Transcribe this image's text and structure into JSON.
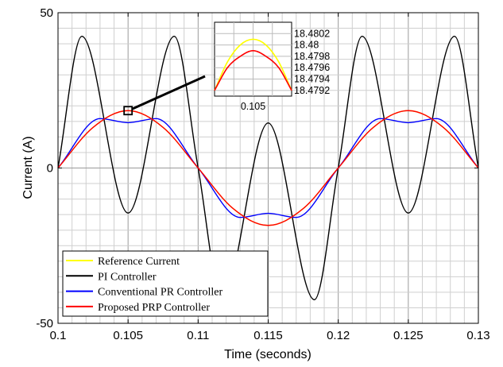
{
  "chart_data": {
    "type": "line",
    "xlabel": "Time (seconds)",
    "ylabel": "Current (A)",
    "xlim": [
      0.1,
      0.13
    ],
    "ylim": [
      -50,
      50
    ],
    "x_ticks": [
      "0.1",
      "0.105",
      "0.11",
      "0.115",
      "0.12",
      "0.125",
      "0.13"
    ],
    "y_ticks": [
      "-50",
      "0",
      "50"
    ],
    "grid": true,
    "legend_position": "bottom-left",
    "series": [
      {
        "name": "Reference Current",
        "color": "#ffff00",
        "x": [
          0.1,
          0.1025,
          0.105,
          0.1075,
          0.11,
          0.1125,
          0.115,
          0.1175,
          0.12,
          0.1225,
          0.125,
          0.1275,
          0.13
        ],
        "y": [
          0,
          13.07,
          18.48,
          13.07,
          0,
          -13.07,
          -18.48,
          -13.07,
          0,
          13.07,
          18.48,
          13.07,
          0
        ]
      },
      {
        "name": "PI Controller",
        "color": "#000000",
        "x": [
          0.1,
          0.1017,
          0.105,
          0.1083,
          0.11,
          0.1117,
          0.115,
          0.1183,
          0.12,
          0.1217,
          0.125,
          0.1283,
          0.13
        ],
        "y": [
          0,
          42.4,
          -14.5,
          42.4,
          0,
          -42.4,
          14.5,
          -42.4,
          0,
          42.4,
          -14.5,
          42.4,
          0
        ]
      },
      {
        "name": "Conventional PR Controller",
        "color": "#0000ff",
        "x": [
          0.1,
          0.103,
          0.105,
          0.107,
          0.11,
          0.113,
          0.115,
          0.117,
          0.12,
          0.123,
          0.125,
          0.127,
          0.13
        ],
        "y": [
          0,
          15.9,
          14.6,
          15.9,
          0,
          -15.9,
          -14.6,
          -15.9,
          0,
          15.9,
          14.6,
          15.9,
          0
        ]
      },
      {
        "name": "Proposed PRP Controller",
        "color": "#ff0000",
        "x": [
          0.1,
          0.1025,
          0.105,
          0.1075,
          0.11,
          0.1125,
          0.115,
          0.1175,
          0.12,
          0.1225,
          0.125,
          0.1275,
          0.13
        ],
        "y": [
          0,
          13.07,
          18.48,
          13.07,
          0,
          -13.07,
          -18.48,
          -13.07,
          0,
          13.07,
          18.48,
          13.07,
          0
        ]
      }
    ],
    "inset": {
      "zoom_point": [
        0.105,
        18.48
      ],
      "x_ticks": [
        "0.105"
      ],
      "y_ticks": [
        "18.4802",
        "18.48",
        "18.4798",
        "18.4796",
        "18.4794",
        "18.4792"
      ],
      "ylim": [
        18.4791,
        18.4804
      ],
      "reference_y": [
        18.4792,
        18.4797,
        18.48,
        18.4801,
        18.48,
        18.4797,
        18.4792
      ],
      "proposed_y": [
        18.4792,
        18.4796,
        18.4798,
        18.4799,
        18.4798,
        18.4796,
        18.4792
      ]
    }
  }
}
